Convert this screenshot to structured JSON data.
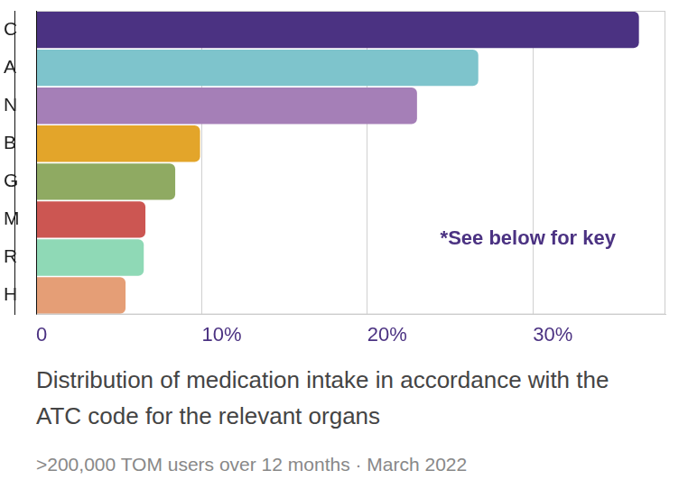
{
  "chart_data": {
    "type": "bar",
    "orientation": "horizontal",
    "title": "Distribution of medication intake in accordance with the ATC code for the relevant organs",
    "subtitle": ">200,000 TOM users over 12 months · March 2022",
    "annotation": "*See below for key",
    "categories": [
      "C",
      "A",
      "N",
      "B",
      "G",
      "M",
      "R",
      "H"
    ],
    "values": [
      36.4,
      26.7,
      23.0,
      9.9,
      8.4,
      6.6,
      6.5,
      5.4
    ],
    "colors": [
      "#4b3282",
      "#7ec4cc",
      "#a57fb7",
      "#e3a52a",
      "#8faa62",
      "#cc5652",
      "#8fd9b6",
      "#e59e76"
    ],
    "xlim": [
      0,
      38
    ],
    "xticks": [
      0,
      {
        "value": 10,
        "label": "10%"
      },
      {
        "value": 20,
        "label": "20%"
      },
      {
        "value": 30,
        "label": "30%"
      }
    ],
    "grid": true
  }
}
